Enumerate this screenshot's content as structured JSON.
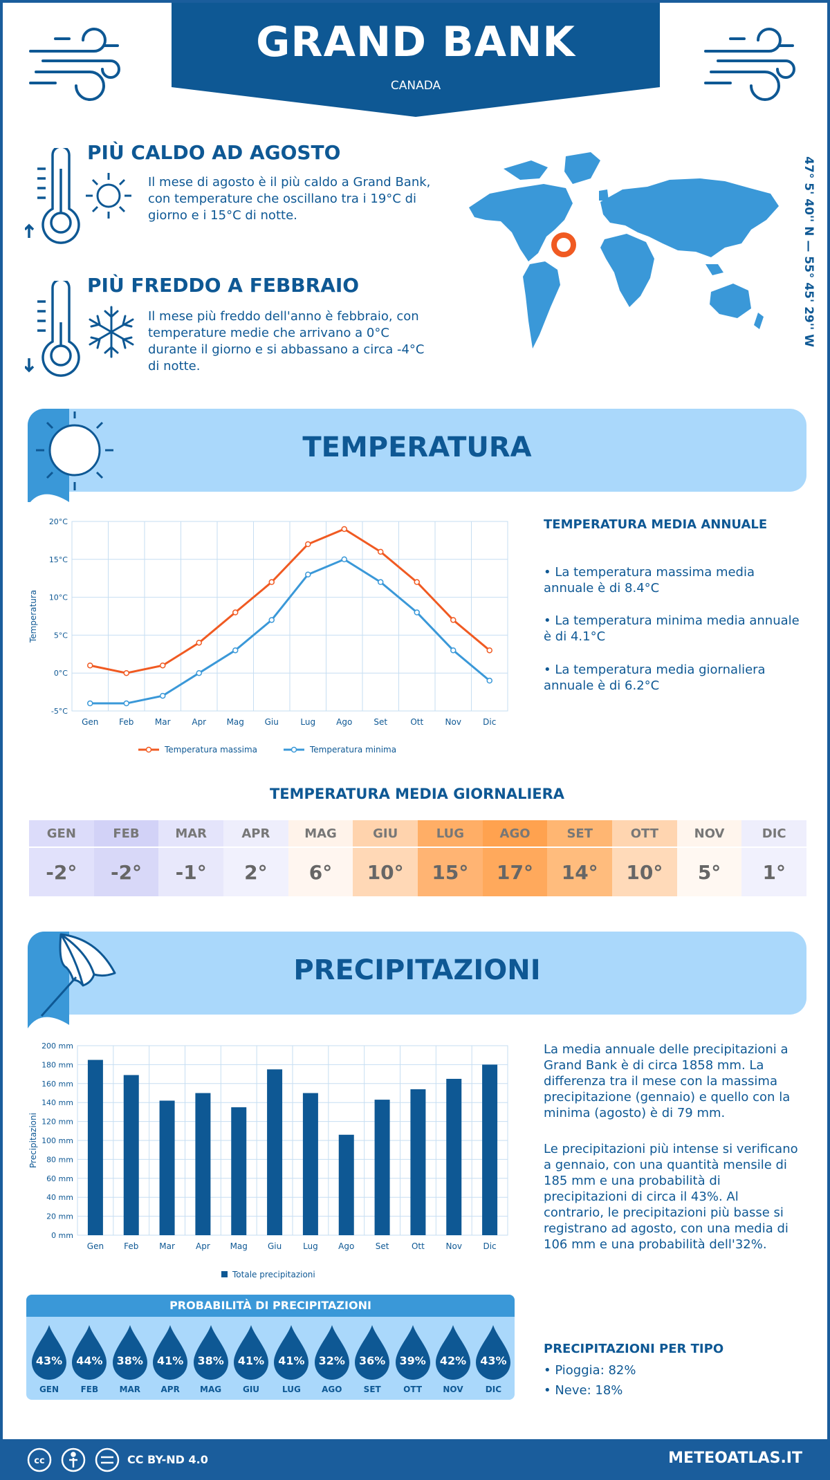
{
  "header": {
    "city": "GRAND BANK",
    "country": "CANADA"
  },
  "coords": "47° 5' 40'' N — 55° 45' 29'' W",
  "warm": {
    "title": "PIÙ CALDO AD AGOSTO",
    "text": "Il mese di agosto è il più caldo a Grand Bank, con temperature che oscillano tra i 19°C di giorno e i 15°C di notte."
  },
  "cold": {
    "title": "PIÙ FREDDO A FEBBRAIO",
    "text": "Il mese più freddo dell'anno è febbraio, con temperature medie che arrivano a 0°C durante il giorno e si abbassano a circa -4°C di notte."
  },
  "temp_section": {
    "title": "TEMPERATURA",
    "side_title": "TEMPERATURA MEDIA ANNUALE",
    "bullets": [
      "• La temperatura massima media annuale è di 8.4°C",
      "• La temperatura minima media annuale è di 4.1°C",
      "• La temperatura media giornaliera annuale è di 6.2°C"
    ]
  },
  "daily": {
    "title": "TEMPERATURA MEDIA GIORNALIERA",
    "months": [
      "GEN",
      "FEB",
      "MAR",
      "APR",
      "MAG",
      "GIU",
      "LUG",
      "AGO",
      "SET",
      "OTT",
      "NOV",
      "DIC"
    ],
    "values": [
      "-2°",
      "-2°",
      "-1°",
      "2°",
      "6°",
      "10°",
      "15°",
      "17°",
      "14°",
      "10°",
      "5°",
      "1°"
    ],
    "head_colors": [
      "#dcdcfa",
      "#d2d2f7",
      "#e4e4fb",
      "#eeeefc",
      "#fff3ea",
      "#ffd3ad",
      "#ffae66",
      "#ffa24f",
      "#ffb672",
      "#ffd5b0",
      "#fff5ed",
      "#eeeefc"
    ],
    "cell_colors": [
      "#e1e1fb",
      "#d8d8f8",
      "#e8e8fb",
      "#f1f1fd",
      "#fff6f0",
      "#ffd8b6",
      "#ffb473",
      "#ffa95c",
      "#ffbc7d",
      "#ffdab9",
      "#fff8f2",
      "#f1f1fd"
    ]
  },
  "precip_section": {
    "title": "PRECIPITAZIONI",
    "para1": "La media annuale delle precipitazioni a Grand Bank è di circa 1858 mm. La differenza tra il mese con la massima precipitazione (gennaio) e quello con la minima (agosto) è di 79 mm.",
    "para2": "Le precipitazioni più intense si verificano a gennaio, con una quantità mensile di 185 mm e una probabilità di precipitazioni di circa il 43%. Al contrario, le precipitazioni più basse si registrano ad agosto, con una media di 106 mm e una probabilità dell'32%.",
    "prob_title": "PROBABILITÀ DI PRECIPITAZIONI",
    "prob_months": [
      "GEN",
      "FEB",
      "MAR",
      "APR",
      "MAG",
      "GIU",
      "LUG",
      "AGO",
      "SET",
      "OTT",
      "NOV",
      "DIC"
    ],
    "prob_values": [
      "43%",
      "44%",
      "38%",
      "41%",
      "38%",
      "41%",
      "41%",
      "32%",
      "36%",
      "39%",
      "42%",
      "43%"
    ],
    "type_title": "PRECIPITAZIONI PER TIPO",
    "rain": "• Pioggia: 82%",
    "snow": "• Neve: 18%"
  },
  "footer": {
    "license": "CC BY-ND 4.0",
    "site": "METEOATLAS.IT"
  },
  "colors": {
    "primary": "#0e5894",
    "light": "#aad8fb",
    "accent": "#3a98d8",
    "max_line": "#f05a22",
    "min_line": "#3a98d8",
    "bar": "#0e5894",
    "marker": "#f05a22"
  },
  "chart_data": [
    {
      "type": "line",
      "categories": [
        "Gen",
        "Feb",
        "Mar",
        "Apr",
        "Mag",
        "Giu",
        "Lug",
        "Ago",
        "Set",
        "Ott",
        "Nov",
        "Dic"
      ],
      "series": [
        {
          "name": "Temperatura massima",
          "values": [
            1,
            0,
            1,
            4,
            8,
            12,
            17,
            19,
            16,
            12,
            7,
            3
          ]
        },
        {
          "name": "Temperatura minima",
          "values": [
            -4,
            -4,
            -3,
            0,
            3,
            7,
            13,
            15,
            12,
            8,
            3,
            -1
          ]
        }
      ],
      "ylabel": "Temperatura",
      "ylim": [
        -5,
        20
      ],
      "yticks": [
        "-5°C",
        "0°C",
        "5°C",
        "10°C",
        "15°C",
        "20°C"
      ],
      "grid": true,
      "legend": "bottom"
    },
    {
      "type": "bar",
      "categories": [
        "Gen",
        "Feb",
        "Mar",
        "Apr",
        "Mag",
        "Giu",
        "Lug",
        "Ago",
        "Set",
        "Ott",
        "Nov",
        "Dic"
      ],
      "series": [
        {
          "name": "Totale precipitazioni",
          "values": [
            185,
            169,
            142,
            150,
            135,
            175,
            150,
            106,
            143,
            154,
            165,
            180
          ]
        }
      ],
      "ylabel": "Precipitazioni",
      "ylim": [
        0,
        200
      ],
      "yticks": [
        "0 mm",
        "20 mm",
        "40 mm",
        "60 mm",
        "80 mm",
        "100 mm",
        "120 mm",
        "140 mm",
        "160 mm",
        "180 mm",
        "200 mm"
      ],
      "grid": true,
      "legend": "bottom"
    }
  ]
}
